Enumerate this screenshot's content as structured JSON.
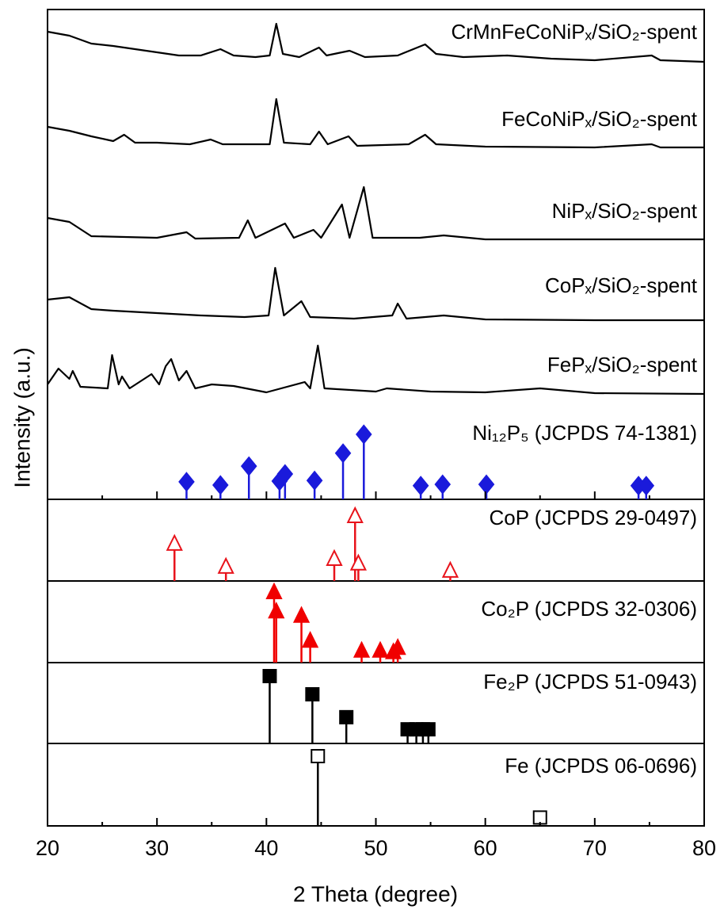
{
  "chart_data": {
    "type": "xrd-stack",
    "xlabel": "2 Theta (degree)",
    "ylabel": "Intensity (a.u.)",
    "xlim": [
      20,
      80
    ],
    "xticks": [
      20,
      30,
      40,
      50,
      60,
      70,
      80
    ],
    "xminorticks": [
      25,
      35,
      45,
      55,
      65,
      75
    ],
    "series": [
      {
        "name": "CrMnFeCoNiPₓ/SiO₂-spent",
        "color": "#000000",
        "x": [
          20,
          22,
          24,
          26,
          28,
          30,
          32,
          34,
          35.8,
          37,
          39,
          40.3,
          40.9,
          41.5,
          43,
          44.8,
          45.5,
          47.6,
          49,
          52,
          54.5,
          55.5,
          58,
          62,
          66,
          70,
          75.2,
          76,
          80
        ],
        "values": [
          45,
          40,
          30,
          27,
          23,
          19,
          15,
          15,
          23,
          15,
          13,
          15,
          55,
          17,
          13,
          25,
          15,
          21,
          13,
          15,
          29,
          17,
          13,
          15,
          11,
          9,
          15,
          9,
          7
        ]
      },
      {
        "name": "FeCoNiPₓ/SiO₂-spent",
        "color": "#000000",
        "x": [
          20,
          22,
          24,
          26,
          27,
          28,
          30,
          33,
          34.9,
          36,
          40.3,
          40.9,
          41.6,
          44,
          44.8,
          45.6,
          47.5,
          48.3,
          53,
          54.5,
          55.5,
          60,
          70,
          75.2,
          76,
          80
        ],
        "values": [
          30,
          25,
          18,
          12,
          20,
          10,
          10,
          8,
          14,
          8,
          8,
          65,
          10,
          8,
          24,
          8,
          18,
          6,
          8,
          20,
          8,
          5,
          4,
          8,
          4,
          4
        ]
      },
      {
        "name": "NiPₓ/SiO₂-spent",
        "color": "#000000",
        "x": [
          20,
          22,
          24,
          30,
          32.7,
          33.5,
          37.5,
          38.3,
          39,
          41.7,
          42.5,
          44.3,
          45,
          46.9,
          47.6,
          48.9,
          49.7,
          54,
          56.2,
          60,
          70,
          80
        ],
        "values": [
          30,
          25,
          7,
          5,
          12,
          4,
          5,
          27,
          5,
          23,
          5,
          15,
          5,
          47,
          5,
          69,
          5,
          5,
          8,
          3,
          3,
          3
        ]
      },
      {
        "name": "CoPₓ/SiO₂-spent",
        "color": "#000000",
        "x": [
          20,
          22,
          24,
          26,
          30,
          34,
          38,
          40.2,
          40.8,
          41.6,
          43.2,
          44,
          48,
          51.5,
          52,
          52.8,
          56.2,
          60,
          70,
          80
        ],
        "values": [
          32,
          35,
          20,
          18,
          15,
          12,
          10,
          12,
          72,
          12,
          30,
          10,
          8,
          12,
          27,
          8,
          12,
          7,
          6,
          6
        ]
      },
      {
        "name": "FePₓ/SiO₂-spent",
        "color": "#000000",
        "x": [
          20,
          21,
          22,
          22.3,
          23,
          25.5,
          25.9,
          26.5,
          26.8,
          27.5,
          29.5,
          30.2,
          30.8,
          31.3,
          32,
          32.7,
          33.5,
          35,
          37,
          40,
          43.5,
          44,
          44.7,
          45.3,
          50,
          51,
          55,
          60,
          65,
          70,
          80
        ],
        "values": [
          20,
          40,
          27,
          37,
          17,
          15,
          57,
          20,
          30,
          15,
          33,
          20,
          43,
          52,
          25,
          37,
          15,
          20,
          18,
          10,
          23,
          15,
          69,
          15,
          11,
          15,
          11,
          10,
          15,
          9,
          8
        ]
      }
    ],
    "references": [
      {
        "name": "Ni₁₂P₅ (JCPDS 74-1381)",
        "color": "#1a1adb",
        "marker": "diamond",
        "filled": true,
        "x": [
          32.7,
          35.8,
          38.4,
          41.2,
          41.7,
          44.4,
          47.0,
          48.9,
          54.1,
          56.1,
          60.1,
          74.0,
          74.7
        ],
        "values": [
          27,
          22,
          51,
          28,
          39,
          29,
          71,
          100,
          21,
          23,
          23,
          21,
          21
        ]
      },
      {
        "name": "CoP (JCPDS 29-0497)",
        "color": "#e8131b",
        "marker": "triangle",
        "filled": false,
        "x": [
          31.6,
          36.3,
          46.2,
          48.1,
          48.4,
          56.8
        ],
        "values": [
          58,
          23,
          35,
          100,
          28,
          17
        ]
      },
      {
        "name": "Co₂P (JCPDS 32-0306)",
        "color": "#f00000",
        "marker": "triangle",
        "filled": true,
        "x": [
          40.7,
          40.9,
          43.2,
          44.0,
          48.7,
          50.4,
          51.6,
          52.0
        ],
        "values": [
          100,
          73,
          67,
          32,
          18,
          18,
          16,
          22
        ]
      },
      {
        "name": "Fe₂P (JCPDS 51-0943)",
        "color": "#000000",
        "marker": "square",
        "filled": true,
        "x": [
          40.3,
          44.2,
          47.3,
          52.9,
          53.7,
          54.3,
          54.8
        ],
        "values": [
          100,
          73,
          39,
          21,
          21,
          21,
          21
        ]
      },
      {
        "name": "Fe (JCPDS 06-0696)",
        "color": "#000000",
        "marker": "square",
        "filled": false,
        "x": [
          44.7,
          65.0
        ],
        "values": [
          100,
          12
        ]
      }
    ]
  }
}
